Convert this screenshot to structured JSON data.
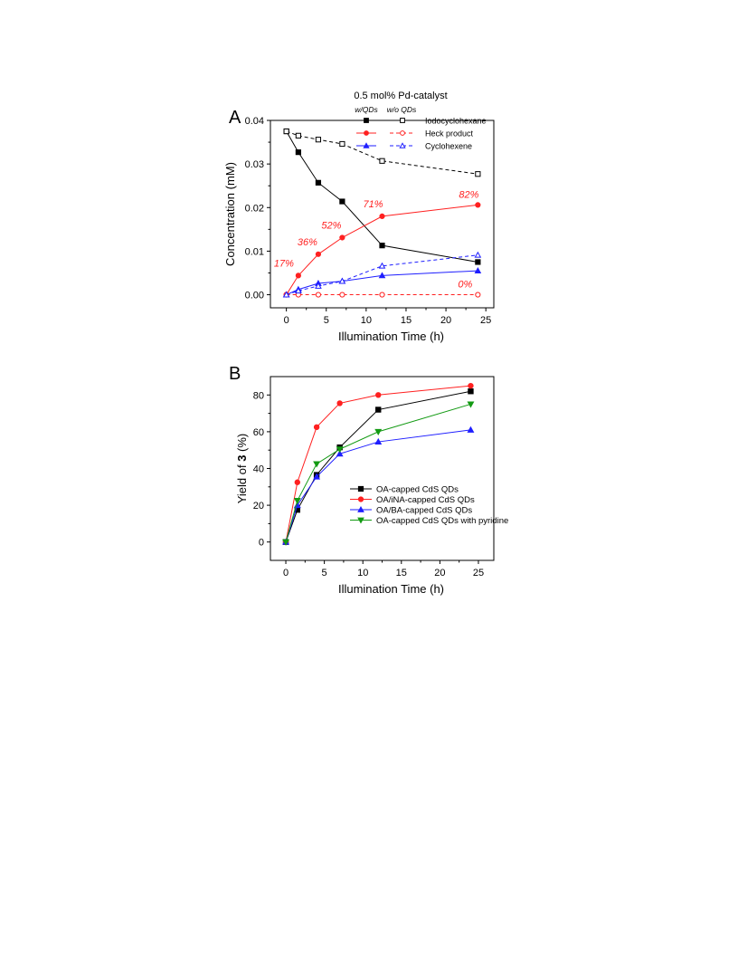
{
  "colors": {
    "black": "#000000",
    "red": "#ff2020",
    "blue": "#1e1eff",
    "green": "#139a13"
  },
  "chart_data": [
    {
      "panel_label": "A",
      "type": "line",
      "title": "0.5 mol% Pd-catalyst",
      "xlabel": "Illumination Time (h)",
      "ylabel": "Concentration (mM)",
      "xlim": [
        -2,
        26
      ],
      "ylim": [
        -0.003,
        0.04
      ],
      "xticks": [
        0,
        5,
        10,
        15,
        20,
        25
      ],
      "xtick_labels": [
        "0",
        "5",
        "10",
        "15",
        "20",
        "25"
      ],
      "yticks": [
        0,
        0.01,
        0.02,
        0.03,
        0.04
      ],
      "ytick_labels": [
        "0.00",
        "0.01",
        "0.02",
        "0.03",
        "0.04"
      ],
      "x": [
        0,
        1.5,
        4,
        7,
        12,
        24
      ],
      "grid": false,
      "legend_headers": [
        "w/QDs",
        "w/o QDs"
      ],
      "legend_labels": [
        "Iodocyclohexane",
        "Heck product",
        "Cyclohexene"
      ],
      "series": [
        {
          "values": [
            0.0375,
            0.0327,
            0.0257,
            0.0214,
            0.0113,
            0.0075
          ],
          "color": "#000000",
          "marker": "square",
          "filled": true,
          "dashed": false
        },
        {
          "values": [
            0.0375,
            0.0365,
            0.0356,
            0.0346,
            0.0307,
            0.0277
          ],
          "color": "#000000",
          "marker": "square",
          "filled": false,
          "dashed": true
        },
        {
          "values": [
            0,
            0.0044,
            0.0093,
            0.0131,
            0.018,
            0.0206
          ],
          "color": "#ff2020",
          "marker": "circle",
          "filled": true,
          "dashed": false
        },
        {
          "values": [
            0,
            0,
            0,
            0,
            0,
            0
          ],
          "color": "#ff2020",
          "marker": "circle",
          "filled": false,
          "dashed": true
        },
        {
          "values": [
            0,
            0.0012,
            0.0026,
            0.0031,
            0.0044,
            0.0055
          ],
          "color": "#1e1eff",
          "marker": "triangle-up",
          "filled": true,
          "dashed": false
        },
        {
          "values": [
            0,
            0.0009,
            0.002,
            0.0031,
            0.0066,
            0.0091
          ],
          "color": "#1e1eff",
          "marker": "triangle-up",
          "filled": false,
          "dashed": true
        }
      ],
      "annotations": [
        {
          "text": "17%",
          "x": 1.5,
          "y": 0.0044
        },
        {
          "text": "36%",
          "x": 4,
          "y": 0.0093
        },
        {
          "text": "52%",
          "x": 7,
          "y": 0.0131
        },
        {
          "text": "71%",
          "x": 12,
          "y": 0.018
        },
        {
          "text": "82%",
          "x": 24,
          "y": 0.0206
        },
        {
          "text": "0%",
          "x": 24,
          "y": 0
        }
      ]
    },
    {
      "panel_label": "B",
      "type": "line",
      "xlabel": "Illumination Time (h)",
      "ylabel_prefix": "Yield of ",
      "ylabel_bold": "3",
      "ylabel_suffix": " (%)",
      "xlim": [
        -2,
        27
      ],
      "ylim": [
        -10,
        90
      ],
      "xticks": [
        0,
        5,
        10,
        15,
        20,
        25
      ],
      "xtick_labels": [
        "0",
        "5",
        "10",
        "15",
        "20",
        "25"
      ],
      "yticks": [
        0,
        20,
        40,
        60,
        80
      ],
      "ytick_labels": [
        "0",
        "20",
        "40",
        "60",
        "80"
      ],
      "x": [
        0,
        1.5,
        4,
        7,
        12,
        24
      ],
      "grid": false,
      "legend_position": "center-right",
      "series": [
        {
          "name": "OA-capped CdS QDs",
          "values": [
            0,
            17.5,
            36.5,
            51.5,
            72,
            82
          ],
          "color": "#000000",
          "marker": "square"
        },
        {
          "name": "OA/iNA-capped CdS QDs",
          "values": [
            0,
            32.5,
            62.5,
            75.5,
            80,
            85
          ],
          "color": "#ff2020",
          "marker": "circle"
        },
        {
          "name": "OA/BA-capped CdS QDs",
          "values": [
            0,
            20,
            35.5,
            48,
            54.5,
            61
          ],
          "color": "#1e1eff",
          "marker": "triangle-up"
        },
        {
          "name": "OA-capped CdS QDs with pyridine",
          "values": [
            0,
            22.5,
            42.5,
            50.5,
            60,
            75
          ],
          "color": "#139a13",
          "marker": "triangle-down"
        }
      ]
    }
  ]
}
